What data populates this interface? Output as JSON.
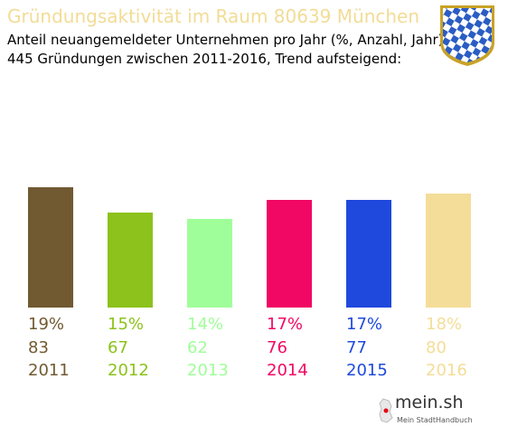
{
  "header": {
    "title": "Gründungsaktivität im Raum 80639 München",
    "subtitle_line1": "Anteil neuangemeldeter Unternehmen pro Jahr (%, Anzahl, Jahr)",
    "subtitle_line2": "445 Gründungen zwischen 2011-2016, Trend aufsteigend:"
  },
  "crest": {
    "icon": "bavarian-coat-of-arms-icon",
    "colors": [
      "#2a5dc4",
      "#ffffff",
      "#c9a227"
    ]
  },
  "chart_data": {
    "type": "bar",
    "categories": [
      "2011",
      "2012",
      "2013",
      "2014",
      "2015",
      "2016"
    ],
    "values": [
      19,
      15,
      14,
      17,
      17,
      18
    ],
    "percent_labels": [
      "19%",
      "15%",
      "14%",
      "17%",
      "17%",
      "18%"
    ],
    "counts": [
      83,
      67,
      62,
      76,
      77,
      80
    ],
    "colors": [
      "#715a32",
      "#8cc21b",
      "#a0fe9a",
      "#f10864",
      "#1f49dd",
      "#f4dd98"
    ],
    "title": "Gründungsaktivität im Raum 80639 München",
    "grid": false,
    "legend": "none"
  },
  "logo": {
    "name": "mein.sh",
    "tagline": "Mein StadtHandbuch",
    "icon": "germany-map-icon"
  }
}
